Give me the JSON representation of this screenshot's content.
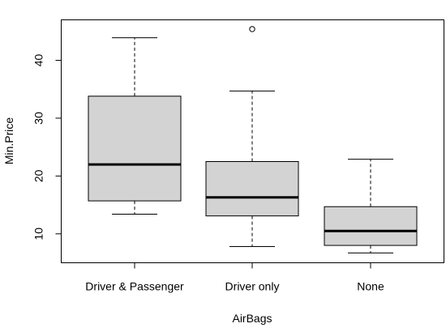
{
  "chart_data": {
    "type": "boxplot",
    "xlabel": "AirBags",
    "ylabel": "Min.Price",
    "ylim": [
      5,
      47
    ],
    "yticks": [
      10,
      20,
      30,
      40
    ],
    "grid": false,
    "categories": [
      "Driver & Passenger",
      "Driver only",
      "None"
    ],
    "boxes": [
      {
        "category": "Driver & Passenger",
        "whisker_low": 13.4,
        "q1": 15.7,
        "median": 22.0,
        "q3": 33.8,
        "whisker_high": 43.9,
        "outliers": []
      },
      {
        "category": "Driver only",
        "whisker_low": 7.8,
        "q1": 13.1,
        "median": 16.3,
        "q3": 22.5,
        "whisker_high": 34.7,
        "outliers": [
          45.4
        ]
      },
      {
        "category": "None",
        "whisker_low": 6.7,
        "q1": 8.0,
        "median": 10.5,
        "q3": 14.7,
        "whisker_high": 22.9,
        "outliers": []
      }
    ],
    "colors": {
      "box_fill": "#d3d3d3",
      "stroke": "#000000",
      "background": "#ffffff"
    }
  }
}
